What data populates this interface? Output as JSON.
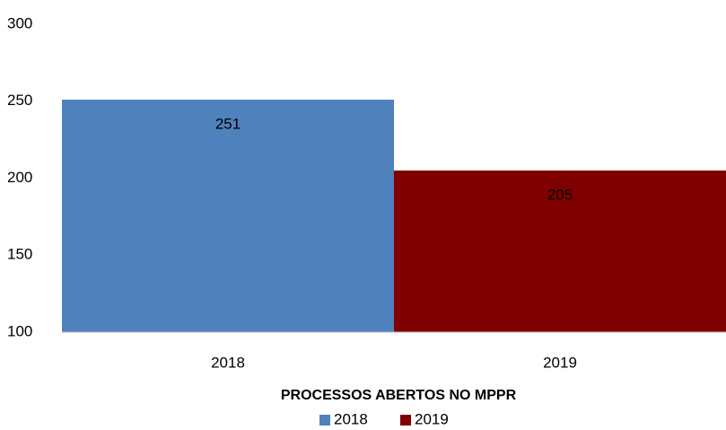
{
  "chart_data": {
    "type": "bar",
    "x_label": "PROCESSOS ABERTOS NO MPPR",
    "categories": [
      "2018",
      "2019"
    ],
    "series": [
      {
        "name": "2018",
        "color": "#4f81bd",
        "values": [
          251,
          null
        ]
      },
      {
        "name": "2019",
        "color": "#800000",
        "values": [
          null,
          205
        ]
      }
    ],
    "ylim": [
      100,
      300
    ],
    "yticks": [
      100,
      150,
      200,
      250,
      300
    ],
    "grid": false,
    "legend": "bottom"
  }
}
